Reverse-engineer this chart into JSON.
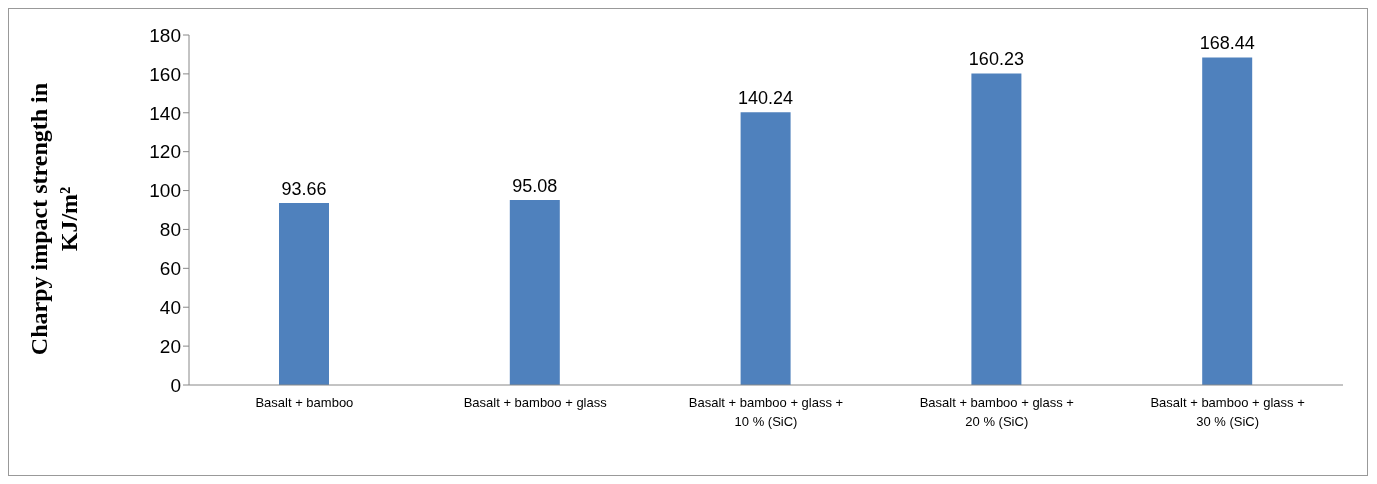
{
  "chart_data": {
    "type": "bar",
    "ylabel": "Charpy impact strength in KJ/m²",
    "categories": [
      "Basalt + bamboo",
      "Basalt + bamboo + glass",
      "Basalt + bamboo + glass + 10 % (SiC)",
      "Basalt + bamboo + glass + 20 % (SiC)",
      "Basalt + bamboo + glass + 30 % (SiC)"
    ],
    "values": [
      93.66,
      95.08,
      140.24,
      160.23,
      168.44
    ],
    "color": "#4f81bd",
    "ylim": [
      0,
      180
    ],
    "yticks": [
      0,
      20,
      40,
      60,
      80,
      100,
      120,
      140,
      160,
      180
    ],
    "grid": false,
    "legend": false,
    "data_labels": true
  }
}
